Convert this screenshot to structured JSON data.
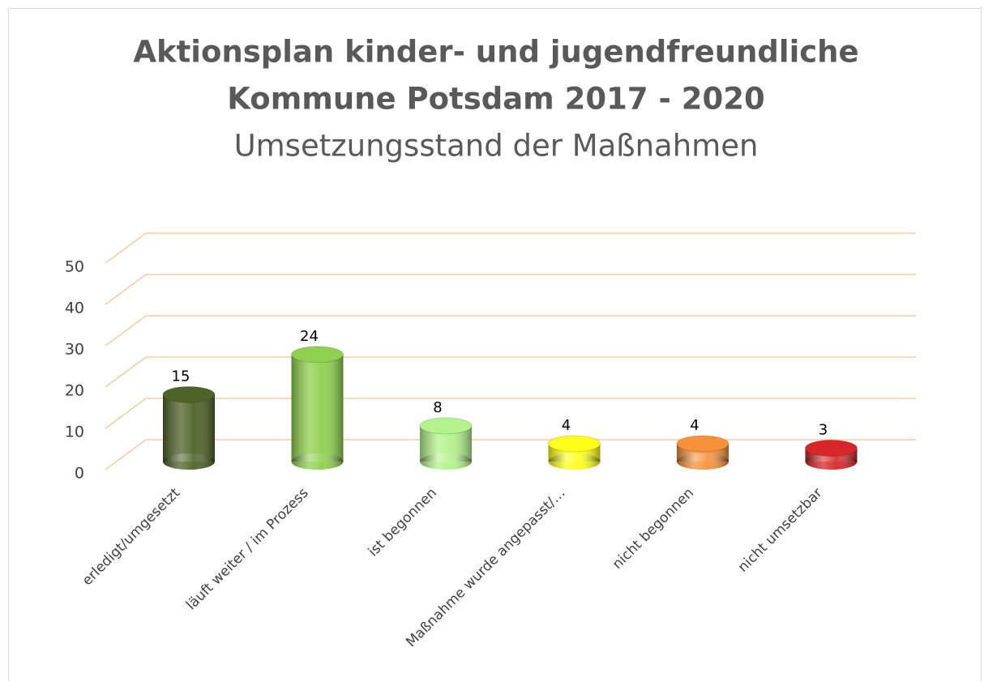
{
  "chart_data": {
    "type": "bar3d",
    "title": [
      "Aktionsplan kinder- und jugendfreundliche",
      "Kommune Potsdam 2017 - 2020"
    ],
    "subtitle": "Umsetzungsstand der Maßnahmen",
    "categories": [
      "erledigt/umgesetzt",
      "läuft weiter / im Prozess",
      "ist begonnen",
      "Maßnahme wurde angepasst/…",
      "nicht begonnen",
      "nicht umsetzbar"
    ],
    "values": [
      15,
      24,
      8,
      4,
      4,
      3
    ],
    "colors": [
      "#4f6228",
      "#8fd14f",
      "#b4f28c",
      "#ffff1a",
      "#f7923a",
      "#d8262a"
    ],
    "ylim": [
      0,
      50
    ],
    "yticks": [
      0,
      10,
      20,
      30,
      40,
      50
    ],
    "grid": true
  }
}
